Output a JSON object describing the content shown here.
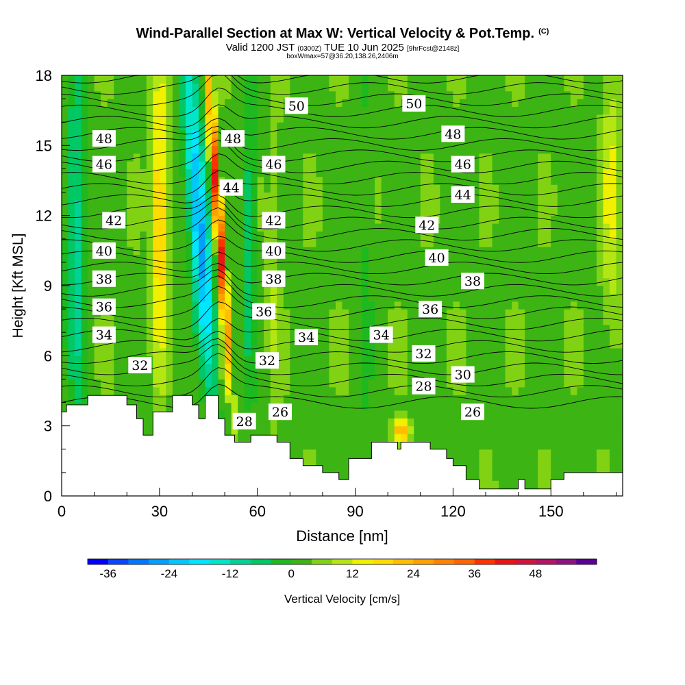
{
  "header": {
    "title": "Wind-Parallel Section at Max W: Vertical Velocity & Pot.Temp.",
    "copyright": "(C)",
    "valid_prefix": "Valid 1200 JST",
    "valid_utc": "(0300Z)",
    "valid_date": "TUE 10 Jun 2025",
    "forecast": "[9hrFcst@2148z]",
    "box_info": "boxWmax=57@36.20,138.26,2406m"
  },
  "chart_data": {
    "type": "heatmap",
    "xlabel": "Distance [nm]",
    "ylabel": "Height [Kft MSL]",
    "xlim": [
      0,
      172
    ],
    "ylim": [
      0,
      18
    ],
    "x_ticks": [
      "0",
      "30",
      "60",
      "90",
      "120",
      "150"
    ],
    "y_ticks": [
      "0",
      "3",
      "6",
      "9",
      "12",
      "15",
      "18"
    ],
    "colorbar": {
      "label": "Vertical Velocity [cm/s]",
      "tick_labels": [
        "-36",
        "-24",
        "-12",
        "0",
        "12",
        "24",
        "36",
        "48"
      ],
      "levels": [
        -40,
        -36,
        -32,
        -28,
        -24,
        -20,
        -16,
        -12,
        -8,
        -4,
        0,
        4,
        8,
        12,
        16,
        20,
        24,
        28,
        32,
        36,
        40,
        44,
        48,
        52,
        56
      ],
      "colors": [
        "#0000ff",
        "#0a46ff",
        "#0078ff",
        "#00a0ff",
        "#00c8ff",
        "#00e6ff",
        "#00e6c8",
        "#00d296",
        "#00c864",
        "#1eb91e",
        "#3cb414",
        "#82d214",
        "#b4e614",
        "#f0f000",
        "#ffdc00",
        "#ffbe00",
        "#ffa000",
        "#ff8200",
        "#ff6400",
        "#ff3200",
        "#eb1414",
        "#d2143c",
        "#b41464",
        "#8c1482",
        "#5a0096"
      ]
    },
    "theta_contour_labels": [
      {
        "x": 24,
        "y": 5.6,
        "label": "32"
      },
      {
        "x": 13,
        "y": 6.9,
        "label": "34"
      },
      {
        "x": 13,
        "y": 8.1,
        "label": "36"
      },
      {
        "x": 13,
        "y": 9.3,
        "label": "38"
      },
      {
        "x": 13,
        "y": 10.5,
        "label": "40"
      },
      {
        "x": 16,
        "y": 11.8,
        "label": "42"
      },
      {
        "x": 13,
        "y": 14.2,
        "label": "46"
      },
      {
        "x": 13,
        "y": 15.3,
        "label": "48"
      },
      {
        "x": 52.5,
        "y": 15.3,
        "label": "48"
      },
      {
        "x": 52,
        "y": 13.2,
        "label": "44"
      },
      {
        "x": 56,
        "y": 3.2,
        "label": "28"
      },
      {
        "x": 67,
        "y": 3.6,
        "label": "26"
      },
      {
        "x": 63,
        "y": 5.8,
        "label": "32"
      },
      {
        "x": 62,
        "y": 7.9,
        "label": "36"
      },
      {
        "x": 65,
        "y": 9.3,
        "label": "38"
      },
      {
        "x": 65,
        "y": 10.5,
        "label": "40"
      },
      {
        "x": 65,
        "y": 11.8,
        "label": "42"
      },
      {
        "x": 65,
        "y": 14.2,
        "label": "46"
      },
      {
        "x": 72,
        "y": 16.7,
        "label": "50"
      },
      {
        "x": 75,
        "y": 6.8,
        "label": "34"
      },
      {
        "x": 98,
        "y": 6.9,
        "label": "34"
      },
      {
        "x": 108,
        "y": 16.8,
        "label": "50"
      },
      {
        "x": 112,
        "y": 11.6,
        "label": "42"
      },
      {
        "x": 115,
        "y": 10.2,
        "label": "40"
      },
      {
        "x": 113,
        "y": 8.0,
        "label": "36"
      },
      {
        "x": 111,
        "y": 6.1,
        "label": "32"
      },
      {
        "x": 111,
        "y": 4.7,
        "label": "28"
      },
      {
        "x": 120,
        "y": 15.5,
        "label": "48"
      },
      {
        "x": 123,
        "y": 14.2,
        "label": "46"
      },
      {
        "x": 123,
        "y": 12.9,
        "label": "44"
      },
      {
        "x": 126,
        "y": 9.2,
        "label": "38"
      },
      {
        "x": 123,
        "y": 5.2,
        "label": "30"
      },
      {
        "x": 126,
        "y": 3.6,
        "label": "26"
      }
    ],
    "terrain_kft": [
      [
        0,
        3.6
      ],
      [
        1.5,
        3.6
      ],
      [
        1.5,
        3.9
      ],
      [
        8,
        3.9
      ],
      [
        8,
        4.3
      ],
      [
        20,
        4.3
      ],
      [
        20,
        3.9
      ],
      [
        23,
        3.9
      ],
      [
        23,
        3.3
      ],
      [
        25,
        3.3
      ],
      [
        25,
        2.6
      ],
      [
        28,
        2.6
      ],
      [
        28,
        3.6
      ],
      [
        31,
        3.6
      ],
      [
        31,
        3.6
      ],
      [
        34,
        3.6
      ],
      [
        34,
        4.3
      ],
      [
        40,
        4.3
      ],
      [
        40,
        3.9
      ],
      [
        42,
        3.9
      ],
      [
        42,
        3.3
      ],
      [
        44,
        3.3
      ],
      [
        44,
        4.3
      ],
      [
        48,
        4.3
      ],
      [
        48,
        3.3
      ],
      [
        50,
        3.3
      ],
      [
        50,
        2.6
      ],
      [
        53,
        2.6
      ],
      [
        53,
        2.3
      ],
      [
        58,
        2.3
      ],
      [
        58,
        2.6
      ],
      [
        66,
        2.6
      ],
      [
        66,
        2.3
      ],
      [
        70,
        2.3
      ],
      [
        70,
        1.6
      ],
      [
        74,
        1.6
      ],
      [
        74,
        1.3
      ],
      [
        80,
        1.3
      ],
      [
        80,
        1.0
      ],
      [
        85,
        1.0
      ],
      [
        85,
        0.7
      ],
      [
        88,
        0.7
      ],
      [
        88,
        1.6
      ],
      [
        95,
        1.6
      ],
      [
        95,
        2.3
      ],
      [
        103,
        2.3
      ],
      [
        103,
        2.0
      ],
      [
        104,
        2.0
      ],
      [
        104,
        2.3
      ],
      [
        113,
        2.3
      ],
      [
        113,
        2.0
      ],
      [
        118,
        2.0
      ],
      [
        118,
        1.6
      ],
      [
        120,
        1.6
      ],
      [
        120,
        1.3
      ],
      [
        124,
        1.3
      ],
      [
        124,
        0.7
      ],
      [
        128,
        0.7
      ],
      [
        128,
        0.3
      ],
      [
        140,
        0.3
      ],
      [
        140,
        0.7
      ],
      [
        142,
        0.7
      ],
      [
        142,
        0.3
      ],
      [
        150,
        0.3
      ],
      [
        150,
        0.7
      ],
      [
        154,
        0.7
      ],
      [
        154,
        1.0
      ],
      [
        172,
        1.0
      ]
    ],
    "w_features": [
      {
        "x0": 1,
        "x1": 8,
        "y0": 4,
        "y1": 18,
        "w": -14
      },
      {
        "x0": 27,
        "x1": 33,
        "y0": 6,
        "y1": 18,
        "w": 18
      },
      {
        "x0": 40,
        "x1": 47,
        "y0": 5,
        "y1": 18,
        "w": -30
      },
      {
        "x0": 48,
        "x1": 51,
        "y0": 6,
        "y1": 18,
        "w": 42
      },
      {
        "x0": 55,
        "x1": 60,
        "y0": 5,
        "y1": 18,
        "w": -10
      },
      {
        "x0": 63,
        "x1": 67,
        "y0": 3,
        "y1": 18,
        "w": 5
      },
      {
        "x0": 90,
        "x1": 96,
        "y0": 2,
        "y1": 18,
        "w": -4
      },
      {
        "x0": 98,
        "x1": 104,
        "y0": 2.3,
        "y1": 3.3,
        "w": 22
      },
      {
        "x0": 165,
        "x1": 172,
        "y0": 8,
        "y1": 18,
        "w": 10
      }
    ]
  }
}
